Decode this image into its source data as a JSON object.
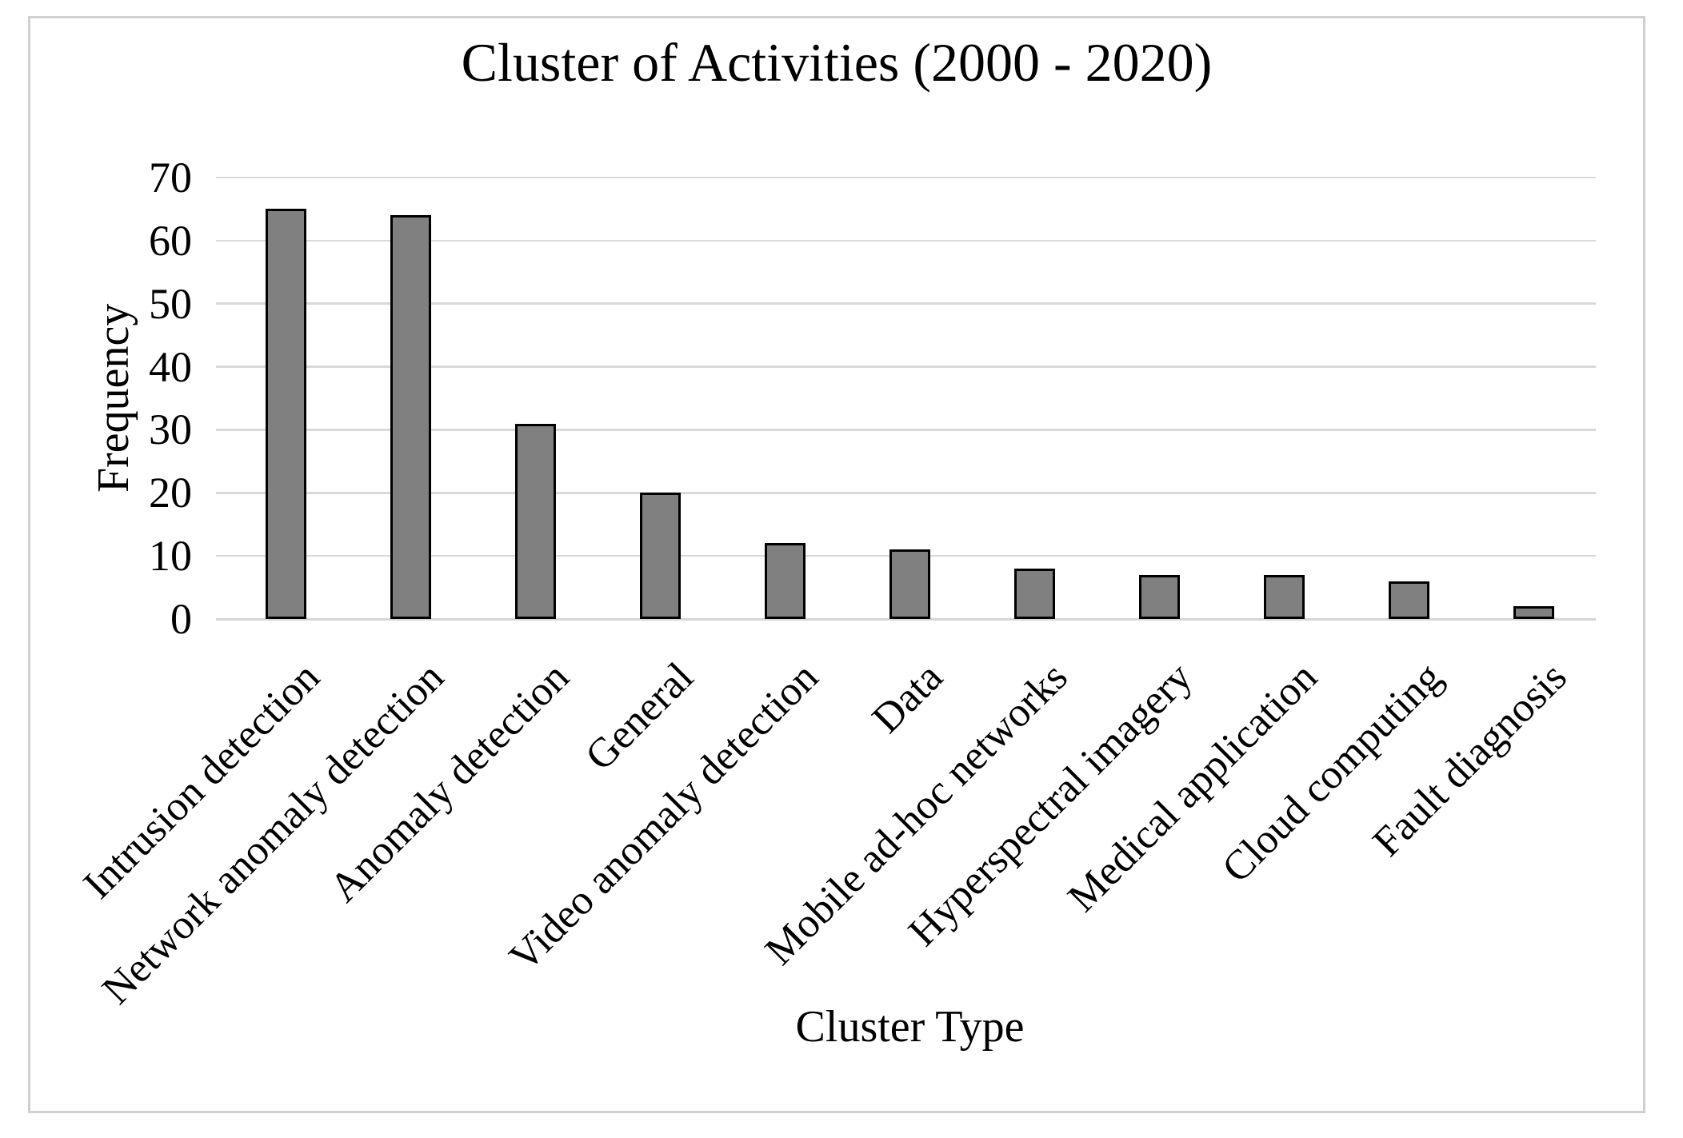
{
  "chart_data": {
    "type": "bar",
    "title": "Cluster of Activities (2000 - 2020)",
    "xlabel": "Cluster Type",
    "ylabel": "Frequency",
    "categories": [
      "Intrusion detection",
      "Network anomaly detection",
      "Anomaly detection",
      "General",
      "Video anomaly detection",
      "Data",
      "Mobile ad-hoc networks",
      "Hyperspectral imagery",
      "Medical application",
      "Cloud computing",
      "Fault diagnosis"
    ],
    "values": [
      65,
      64,
      31,
      20,
      12,
      11,
      8,
      7,
      7,
      6,
      2
    ],
    "ylim": [
      0,
      70
    ],
    "yticks": [
      0,
      10,
      20,
      30,
      40,
      50,
      60,
      70
    ],
    "grid": "horizontal",
    "legend": "none",
    "colors": {
      "bar_fill": "#808080",
      "bar_border": "#000000",
      "gridline": "#d9d9d9",
      "axis_baseline": "#d6d6d6",
      "frame_border": "#d0d0d0",
      "text": "#000000",
      "background": "#ffffff"
    }
  }
}
